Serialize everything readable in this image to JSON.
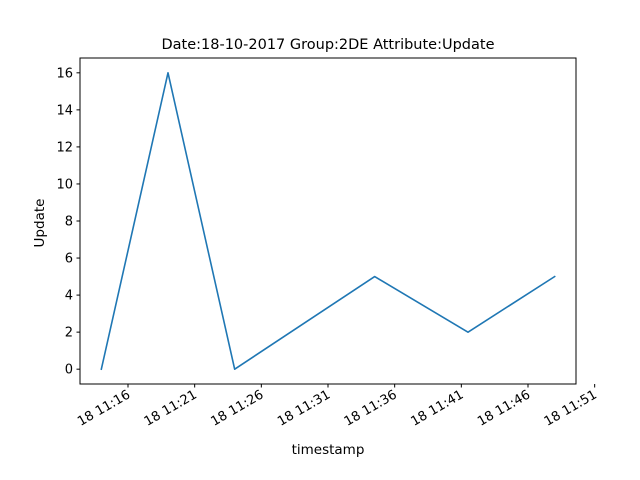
{
  "chart_data": {
    "type": "line",
    "title": "Date:18-10-2017  Group:2DE Attribute:Update",
    "xlabel": "timestamp",
    "ylabel": "Update",
    "x": [
      "11:14:00",
      "11:19:00",
      "11:24:00",
      "11:34:30",
      "11:41:30",
      "11:48:00"
    ],
    "series": [
      {
        "values": [
          0,
          16,
          0,
          5,
          2,
          5
        ],
        "color": "#1f77b4"
      }
    ],
    "xlim": [
      "11:12:24",
      "11:49:36"
    ],
    "ylim": [
      -0.8,
      16.8
    ],
    "x_ticks": [
      "11:16",
      "11:21",
      "11:26",
      "11:31",
      "11:36",
      "11:41",
      "11:46",
      "11:51"
    ],
    "x_tick_labels": [
      "18 11:16",
      "18 11:21",
      "18 11:26",
      "18 11:31",
      "18 11:36",
      "18 11:41",
      "18 11:46",
      "18 11:51"
    ],
    "y_ticks": [
      0,
      2,
      4,
      6,
      8,
      10,
      12,
      14,
      16
    ],
    "y_tick_labels": [
      "0",
      "2",
      "4",
      "6",
      "8",
      "10",
      "12",
      "14",
      "16"
    ],
    "grid": false,
    "legend": "none"
  }
}
